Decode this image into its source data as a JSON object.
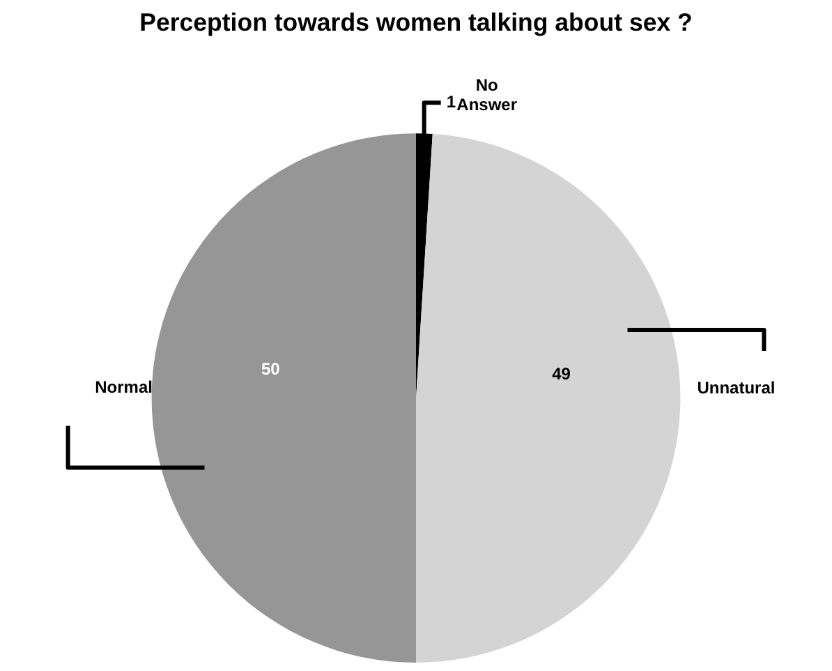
{
  "chart_data": {
    "type": "pie",
    "title": "Perception towards women talking about sex ?",
    "categories": [
      "No\nAnswer",
      "Unnatural",
      "Normal"
    ],
    "values": [
      1,
      49,
      50
    ],
    "colors": [
      "#000000",
      "#d4d4d4",
      "#969696"
    ],
    "data_labels": true,
    "legend": false
  }
}
